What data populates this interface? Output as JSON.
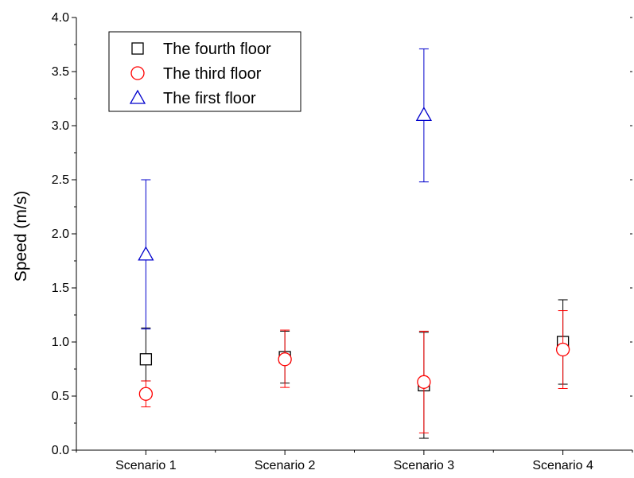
{
  "chart_data": {
    "type": "scatter",
    "title": "",
    "xlabel": "",
    "ylabel": "Speed (m/s)",
    "categories": [
      "Scenario 1",
      "Scenario 2",
      "Scenario 3",
      "Scenario 4"
    ],
    "ylim": [
      0.0,
      4.0
    ],
    "yticks": [
      "0.0",
      "0.5",
      "1.0",
      "1.5",
      "2.0",
      "2.5",
      "3.0",
      "3.5",
      "4.0"
    ],
    "grid": false,
    "legend_position": "top-left",
    "series": [
      {
        "name": "The fourth floor",
        "marker": "square",
        "color": "#000000",
        "points": [
          {
            "category": "Scenario 1",
            "y": 0.84,
            "err_low": 0.64,
            "err_high": 1.13
          },
          {
            "category": "Scenario 2",
            "y": 0.86,
            "err_low": 0.62,
            "err_high": 1.1
          },
          {
            "category": "Scenario 3",
            "y": 0.6,
            "err_low": 0.11,
            "err_high": 1.09
          },
          {
            "category": "Scenario 4",
            "y": 1.0,
            "err_low": 0.61,
            "err_high": 1.39
          }
        ]
      },
      {
        "name": "The third floor",
        "marker": "circle",
        "color": "#ff0000",
        "points": [
          {
            "category": "Scenario 1",
            "y": 0.52,
            "err_low": 0.4,
            "err_high": 0.64
          },
          {
            "category": "Scenario 2",
            "y": 0.84,
            "err_low": 0.58,
            "err_high": 1.11
          },
          {
            "category": "Scenario 3",
            "y": 0.63,
            "err_low": 0.16,
            "err_high": 1.1
          },
          {
            "category": "Scenario 4",
            "y": 0.93,
            "err_low": 0.57,
            "err_high": 1.29
          }
        ]
      },
      {
        "name": "The first floor",
        "marker": "triangle",
        "color": "#0000cc",
        "points": [
          {
            "category": "Scenario 1",
            "y": 1.81,
            "err_low": 1.12,
            "err_high": 2.5
          },
          {
            "category": "Scenario 3",
            "y": 3.1,
            "err_low": 2.48,
            "err_high": 3.71
          }
        ]
      }
    ]
  }
}
